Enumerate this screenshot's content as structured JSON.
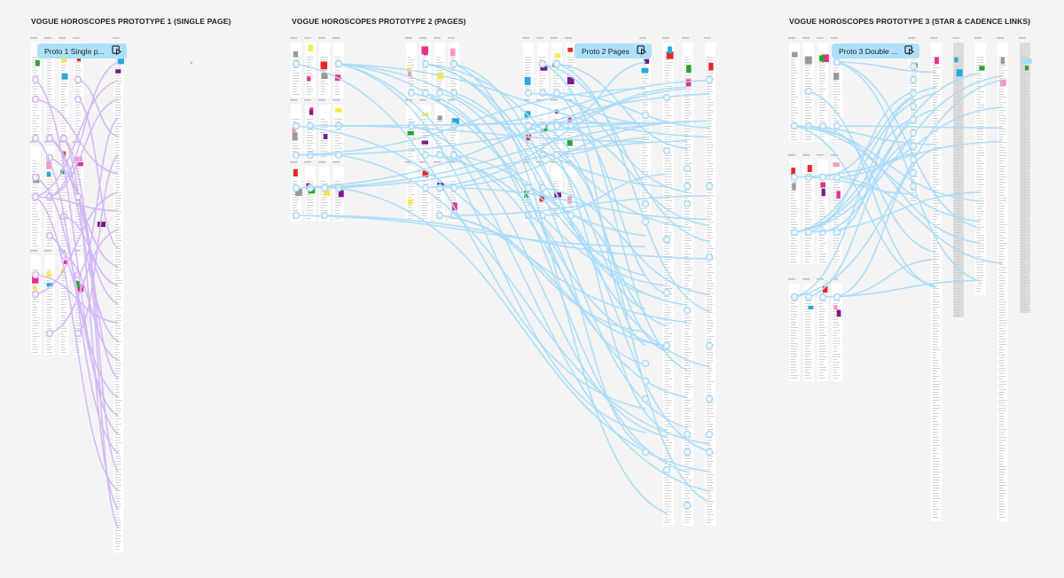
{
  "sections": [
    {
      "title": "VOGUE HOROSCOPES PROTOTYPE 1 (SINGLE PAGE)",
      "flow_label": "Proto 1 Single p...",
      "connection_color": "#d2b6f7"
    },
    {
      "title": "VOGUE HOROSCOPES PROTOTYPE 2 (PAGES)",
      "flow_label": "Proto 2 Pages",
      "connection_color": "#a9dcfa"
    },
    {
      "title": "VOGUE HOROSCOPES PROTOTYPE  3 (STAR & CADENCE LINKS)",
      "flow_label": "Proto 3 Double ...",
      "connection_color": "#a9dcfa"
    }
  ],
  "icons": {
    "flow_start": "play-flow-icon"
  },
  "colors": {
    "canvas": "#f4f4f4",
    "frame": "#ffffff",
    "accents": [
      "#f5e94a",
      "#ea2d8c",
      "#2aa32a",
      "#e82727",
      "#27a9e1",
      "#f29ac4",
      "#7a1a8a",
      "#999999"
    ]
  }
}
